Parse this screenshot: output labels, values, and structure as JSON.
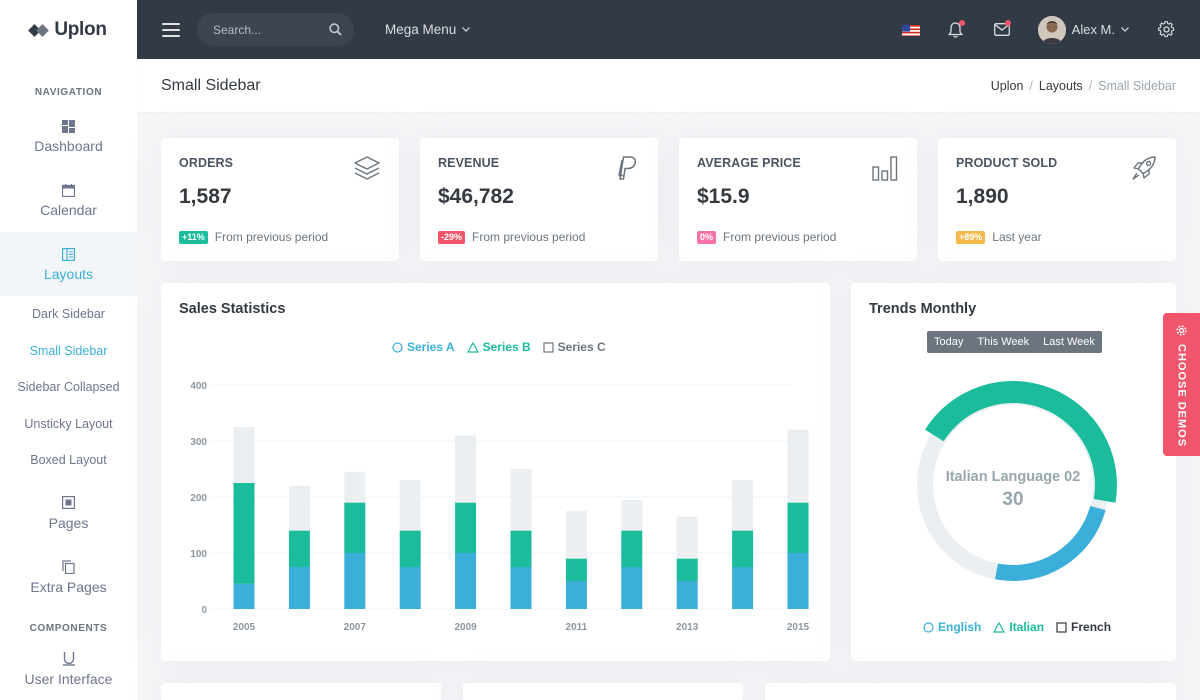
{
  "brand": {
    "name": "Uplon"
  },
  "sidebar": {
    "nav_title": "NAVIGATION",
    "components_title": "COMPONENTS",
    "items": [
      {
        "label": "Dashboard",
        "icon": "dashboard-icon"
      },
      {
        "label": "Calendar",
        "icon": "calendar-icon"
      },
      {
        "label": "Layouts",
        "icon": "layout-icon"
      },
      {
        "label": "Pages",
        "icon": "pages-icon"
      },
      {
        "label": "Extra Pages",
        "icon": "copy-icon"
      },
      {
        "label": "User Interface",
        "icon": "magnet-icon"
      }
    ],
    "layouts_sub": [
      "Dark Sidebar",
      "Small Sidebar",
      "Sidebar Collapsed",
      "Unsticky Layout",
      "Boxed Layout"
    ]
  },
  "topbar": {
    "search_placeholder": "Search...",
    "mega_menu": "Mega Menu",
    "user_name": "Alex M."
  },
  "page": {
    "title": "Small Sidebar",
    "breadcrumb": [
      "Uplon",
      "Layouts",
      "Small Sidebar"
    ]
  },
  "stats": [
    {
      "label": "ORDERS",
      "value": "1,587",
      "badge": "+11%",
      "badge_color": "#1abc9c",
      "note": "From previous period",
      "icon": "layers-icon"
    },
    {
      "label": "REVENUE",
      "value": "$46,782",
      "badge": "-29%",
      "badge_color": "#f1556c",
      "note": "From previous period",
      "icon": "paypal-icon"
    },
    {
      "label": "AVERAGE PRICE",
      "value": "$15.9",
      "badge": "0%",
      "badge_color": "#f672a7",
      "note": "From previous period",
      "icon": "bar-chart-icon"
    },
    {
      "label": "PRODUCT SOLD",
      "value": "1,890",
      "badge": "+89%",
      "badge_color": "#f7b84b",
      "note": "Last year",
      "icon": "rocket-icon"
    }
  ],
  "sales": {
    "title": "Sales Statistics",
    "legend": [
      "Series A",
      "Series B",
      "Series C"
    ],
    "chart_data": {
      "type": "bar",
      "stacked": true,
      "categories": [
        "2005",
        "2006",
        "2007",
        "2008",
        "2009",
        "2010",
        "2011",
        "2012",
        "2013",
        "2014",
        "2015"
      ],
      "x_tick_labels": [
        "2005",
        "2007",
        "2009",
        "2011",
        "2013",
        "2015"
      ],
      "series": [
        {
          "name": "Series A",
          "color": "#3bafda",
          "values": [
            45,
            75,
            100,
            75,
            100,
            75,
            50,
            75,
            50,
            75,
            100
          ]
        },
        {
          "name": "Series B",
          "color": "#1abc9c",
          "values": [
            180,
            65,
            90,
            65,
            90,
            65,
            40,
            65,
            40,
            65,
            90
          ]
        },
        {
          "name": "Series C",
          "color": "#ebeff2",
          "values": [
            100,
            80,
            55,
            90,
            120,
            110,
            85,
            55,
            75,
            90,
            130
          ]
        }
      ],
      "ylim": [
        0,
        400
      ],
      "yticks": [
        0,
        100,
        200,
        300,
        400
      ],
      "grid": true,
      "legend_position": "top-center"
    }
  },
  "trends": {
    "title": "Trends Monthly",
    "tabs": [
      "Today",
      "This Week",
      "Last Week"
    ],
    "center_label": "Italian Language 02",
    "center_value": "30",
    "legend": [
      "English",
      "Italian",
      "French"
    ],
    "chart_data": {
      "type": "pie",
      "donut": true,
      "labels": [
        "English",
        "Italian",
        "French"
      ],
      "values": [
        25,
        45,
        30
      ],
      "colors": [
        "#3bafda",
        "#1abc9c",
        "#ebeff2"
      ],
      "legend_position": "bottom-center"
    }
  },
  "demos_label": "CHOOSE DEMOS"
}
